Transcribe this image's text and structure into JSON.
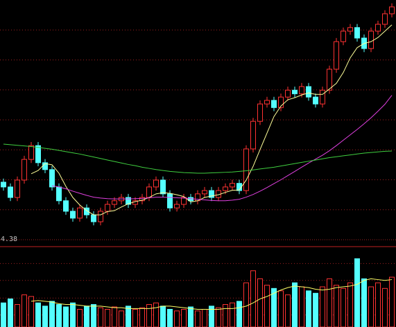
{
  "chart_data": [
    {
      "type": "candlestick",
      "ylim": [
        4.38,
        12.38
      ],
      "yticks": [
        {
          "value": 4.38,
          "label": "4.38"
        }
      ],
      "grid_lines": [
        5.38,
        6.38,
        7.38,
        8.38,
        9.38,
        10.38,
        11.38
      ],
      "up_color": "#ff3232",
      "down_color": "#54ffff",
      "open": [
        6.3,
        6.14,
        5.79,
        6.37,
        7.06,
        7.52,
        6.95,
        6.72,
        6.14,
        5.68,
        5.33,
        5.1,
        5.44,
        5.21,
        4.98,
        5.33,
        5.56,
        5.68,
        5.79,
        5.56,
        5.68,
        5.79,
        6.14,
        6.37,
        5.91,
        5.44,
        5.56,
        5.79,
        5.68,
        5.91,
        6.02,
        5.79,
        6.02,
        6.14,
        6.26,
        6.02,
        7.41,
        8.33,
        8.91,
        9.03,
        8.79,
        9.14,
        9.37,
        9.25,
        9.49,
        9.14,
        8.91,
        9.37,
        10.07,
        10.99,
        11.34,
        11.46,
        11.11,
        10.76,
        11.34,
        11.57,
        11.92
      ],
      "high": [
        6.42,
        6.26,
        6.49,
        7.18,
        7.64,
        7.64,
        7.07,
        6.84,
        6.26,
        5.8,
        5.45,
        5.56,
        5.56,
        5.33,
        5.45,
        5.68,
        5.8,
        5.91,
        5.91,
        5.8,
        5.91,
        6.26,
        6.49,
        6.49,
        6.03,
        5.68,
        5.91,
        5.91,
        6.03,
        6.14,
        6.14,
        6.14,
        6.26,
        6.38,
        6.38,
        7.53,
        8.45,
        9.03,
        9.15,
        9.15,
        9.26,
        9.49,
        9.49,
        9.61,
        9.61,
        9.26,
        9.49,
        10.19,
        11.11,
        11.46,
        11.58,
        11.58,
        11.23,
        11.46,
        11.69,
        12.04,
        12.27
      ],
      "low": [
        6.02,
        5.67,
        5.67,
        6.25,
        6.94,
        6.83,
        6.6,
        6.02,
        5.56,
        5.21,
        4.98,
        4.98,
        5.09,
        4.86,
        4.86,
        5.21,
        5.44,
        5.56,
        5.44,
        5.44,
        5.56,
        5.67,
        6.02,
        5.79,
        5.32,
        5.32,
        5.44,
        5.56,
        5.56,
        5.79,
        5.67,
        5.67,
        5.9,
        6.02,
        5.9,
        5.9,
        7.29,
        8.21,
        8.79,
        8.67,
        8.67,
        9.02,
        9.13,
        9.13,
        9.02,
        8.79,
        8.79,
        9.25,
        9.95,
        10.87,
        11.22,
        10.99,
        10.64,
        10.64,
        11.22,
        11.45,
        11.8
      ],
      "close": [
        6.14,
        5.79,
        6.37,
        7.06,
        7.52,
        6.95,
        6.72,
        6.14,
        5.68,
        5.33,
        5.1,
        5.44,
        5.21,
        4.98,
        5.33,
        5.56,
        5.68,
        5.79,
        5.56,
        5.68,
        5.79,
        6.14,
        6.37,
        5.91,
        5.44,
        5.56,
        5.79,
        5.68,
        5.91,
        6.02,
        5.79,
        6.02,
        6.14,
        6.26,
        6.02,
        7.41,
        8.33,
        8.91,
        9.03,
        8.79,
        9.14,
        9.37,
        9.25,
        9.49,
        9.14,
        8.91,
        9.37,
        10.07,
        10.99,
        11.34,
        11.46,
        11.11,
        10.76,
        11.34,
        11.57,
        11.92,
        12.15
      ],
      "lines": [
        {
          "color": "#ffff99",
          "values": [
            null,
            null,
            null,
            null,
            6.58,
            6.69,
            6.92,
            6.88,
            6.6,
            6.16,
            5.79,
            5.54,
            5.35,
            5.21,
            5.21,
            5.32,
            5.35,
            5.47,
            5.58,
            5.65,
            5.7,
            5.79,
            5.91,
            5.95,
            5.93,
            5.88,
            5.82,
            5.64,
            5.68,
            5.79,
            5.84,
            5.88,
            5.96,
            6.03,
            6.04,
            6.37,
            6.83,
            7.39,
            7.94,
            8.49,
            8.84,
            9.05,
            9.12,
            9.21,
            9.28,
            9.23,
            9.23,
            9.41,
            9.6,
            9.96,
            10.45,
            10.79,
            10.93,
            10.99,
            11.13,
            11.34,
            11.55
          ]
        },
        {
          "color": "#e040e0",
          "values": [
            null,
            null,
            null,
            null,
            null,
            null,
            null,
            6.18,
            6.14,
            6.08,
            6.0,
            5.93,
            5.86,
            5.8,
            5.77,
            5.75,
            5.74,
            5.74,
            5.74,
            5.75,
            5.76,
            5.78,
            5.8,
            5.8,
            5.79,
            5.78,
            5.77,
            5.75,
            5.73,
            5.71,
            5.69,
            5.68,
            5.68,
            5.7,
            5.73,
            5.8,
            5.89,
            6.0,
            6.12,
            6.25,
            6.38,
            6.52,
            6.66,
            6.8,
            6.94,
            7.07,
            7.2,
            7.35,
            7.52,
            7.7,
            7.88,
            8.06,
            8.25,
            8.45,
            8.67,
            8.9,
            9.2
          ]
        },
        {
          "color": "#40d040",
          "values": [
            7.57,
            7.55,
            7.53,
            7.51,
            7.49,
            7.46,
            7.43,
            7.4,
            7.36,
            7.32,
            7.28,
            7.24,
            7.19,
            7.14,
            7.09,
            7.04,
            6.99,
            6.94,
            6.89,
            6.85,
            6.8,
            6.76,
            6.72,
            6.69,
            6.66,
            6.64,
            6.62,
            6.61,
            6.6,
            6.6,
            6.61,
            6.62,
            6.63,
            6.64,
            6.66,
            6.68,
            6.71,
            6.74,
            6.77,
            6.8,
            6.84,
            6.88,
            6.92,
            6.96,
            7.0,
            7.04,
            7.08,
            7.12,
            7.15,
            7.18,
            7.21,
            7.24,
            7.27,
            7.29,
            7.31,
            7.33,
            7.34
          ]
        }
      ]
    },
    {
      "type": "volume",
      "ylim": [
        0,
        100
      ],
      "grid_lines": [
        15,
        36,
        58,
        79
      ],
      "values": [
        30,
        35,
        28,
        40,
        38,
        30,
        26,
        32,
        28,
        25,
        30,
        22,
        26,
        28,
        24,
        22,
        25,
        20,
        26,
        22,
        24,
        28,
        30,
        26,
        22,
        20,
        22,
        25,
        20,
        22,
        26,
        24,
        28,
        30,
        32,
        55,
        70,
        60,
        52,
        48,
        45,
        40,
        55,
        50,
        45,
        42,
        50,
        60,
        52,
        48,
        55,
        85,
        60,
        50,
        55,
        48,
        62
      ],
      "lines": [
        {
          "color": "#ffff66",
          "values": [
            null,
            null,
            null,
            null,
            32,
            33,
            32,
            31,
            29,
            28,
            28,
            27,
            26,
            26,
            26,
            25,
            24,
            24,
            23,
            23,
            23,
            23,
            24,
            26,
            26,
            25,
            24,
            23,
            22,
            22,
            22,
            22,
            23,
            23,
            24,
            26,
            30,
            35,
            38,
            42,
            46,
            49,
            51,
            50,
            49,
            47,
            46,
            47,
            49,
            50,
            51,
            53,
            58,
            60,
            59,
            58,
            59
          ]
        }
      ]
    }
  ]
}
